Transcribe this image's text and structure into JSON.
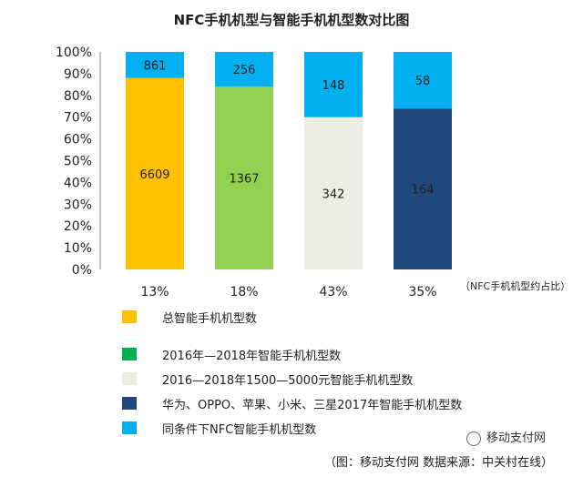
{
  "chart_data": {
    "type": "bar",
    "stacked": true,
    "title": "NFC手机机型与智能手机机型数对比图",
    "categories": [
      "13%",
      "18%",
      "43%",
      "35%"
    ],
    "category_note": "（NFC手机机型约占比）",
    "yticks": [
      "0%",
      "10%",
      "20%",
      "30%",
      "40%",
      "50%",
      "60%",
      "70%",
      "80%",
      "90%",
      "100%"
    ],
    "ylim": [
      0,
      100
    ],
    "grid": false,
    "legend_position": "bottom",
    "series": [
      {
        "name_key": "base",
        "values_pct": [
          88,
          84,
          70,
          74
        ],
        "labels": [
          "6609",
          "1367",
          "342",
          "164"
        ],
        "colors": [
          "#FFC000",
          "#92D050",
          "#EEEDE1",
          "#1F497D"
        ]
      },
      {
        "name_key": "nfc",
        "values_pct": [
          12,
          16,
          30,
          26
        ],
        "labels": [
          "861",
          "256",
          "148",
          "58"
        ],
        "colors": [
          "#00B0F0",
          "#00B0F0",
          "#00B0F0",
          "#00B0F0"
        ]
      }
    ]
  },
  "legend": [
    {
      "label": "总智能手机机型数",
      "color": "#FFC000"
    },
    {
      "label": "2016年—2018年智能手机机型数",
      "color": "#00B050"
    },
    {
      "label": "2016—2018年1500—5000元智能手机机型数",
      "color": "#EEEDE1"
    },
    {
      "label": "华为、OPPO、苹果、小米、三星2017年智能手机机型数",
      "color": "#1F497D"
    },
    {
      "label": "同条件下NFC智能手机机型数",
      "color": "#00B0F0"
    }
  ],
  "watermark": "移动支付网",
  "source": "（图：移动支付网  数据来源：中关村在线）"
}
